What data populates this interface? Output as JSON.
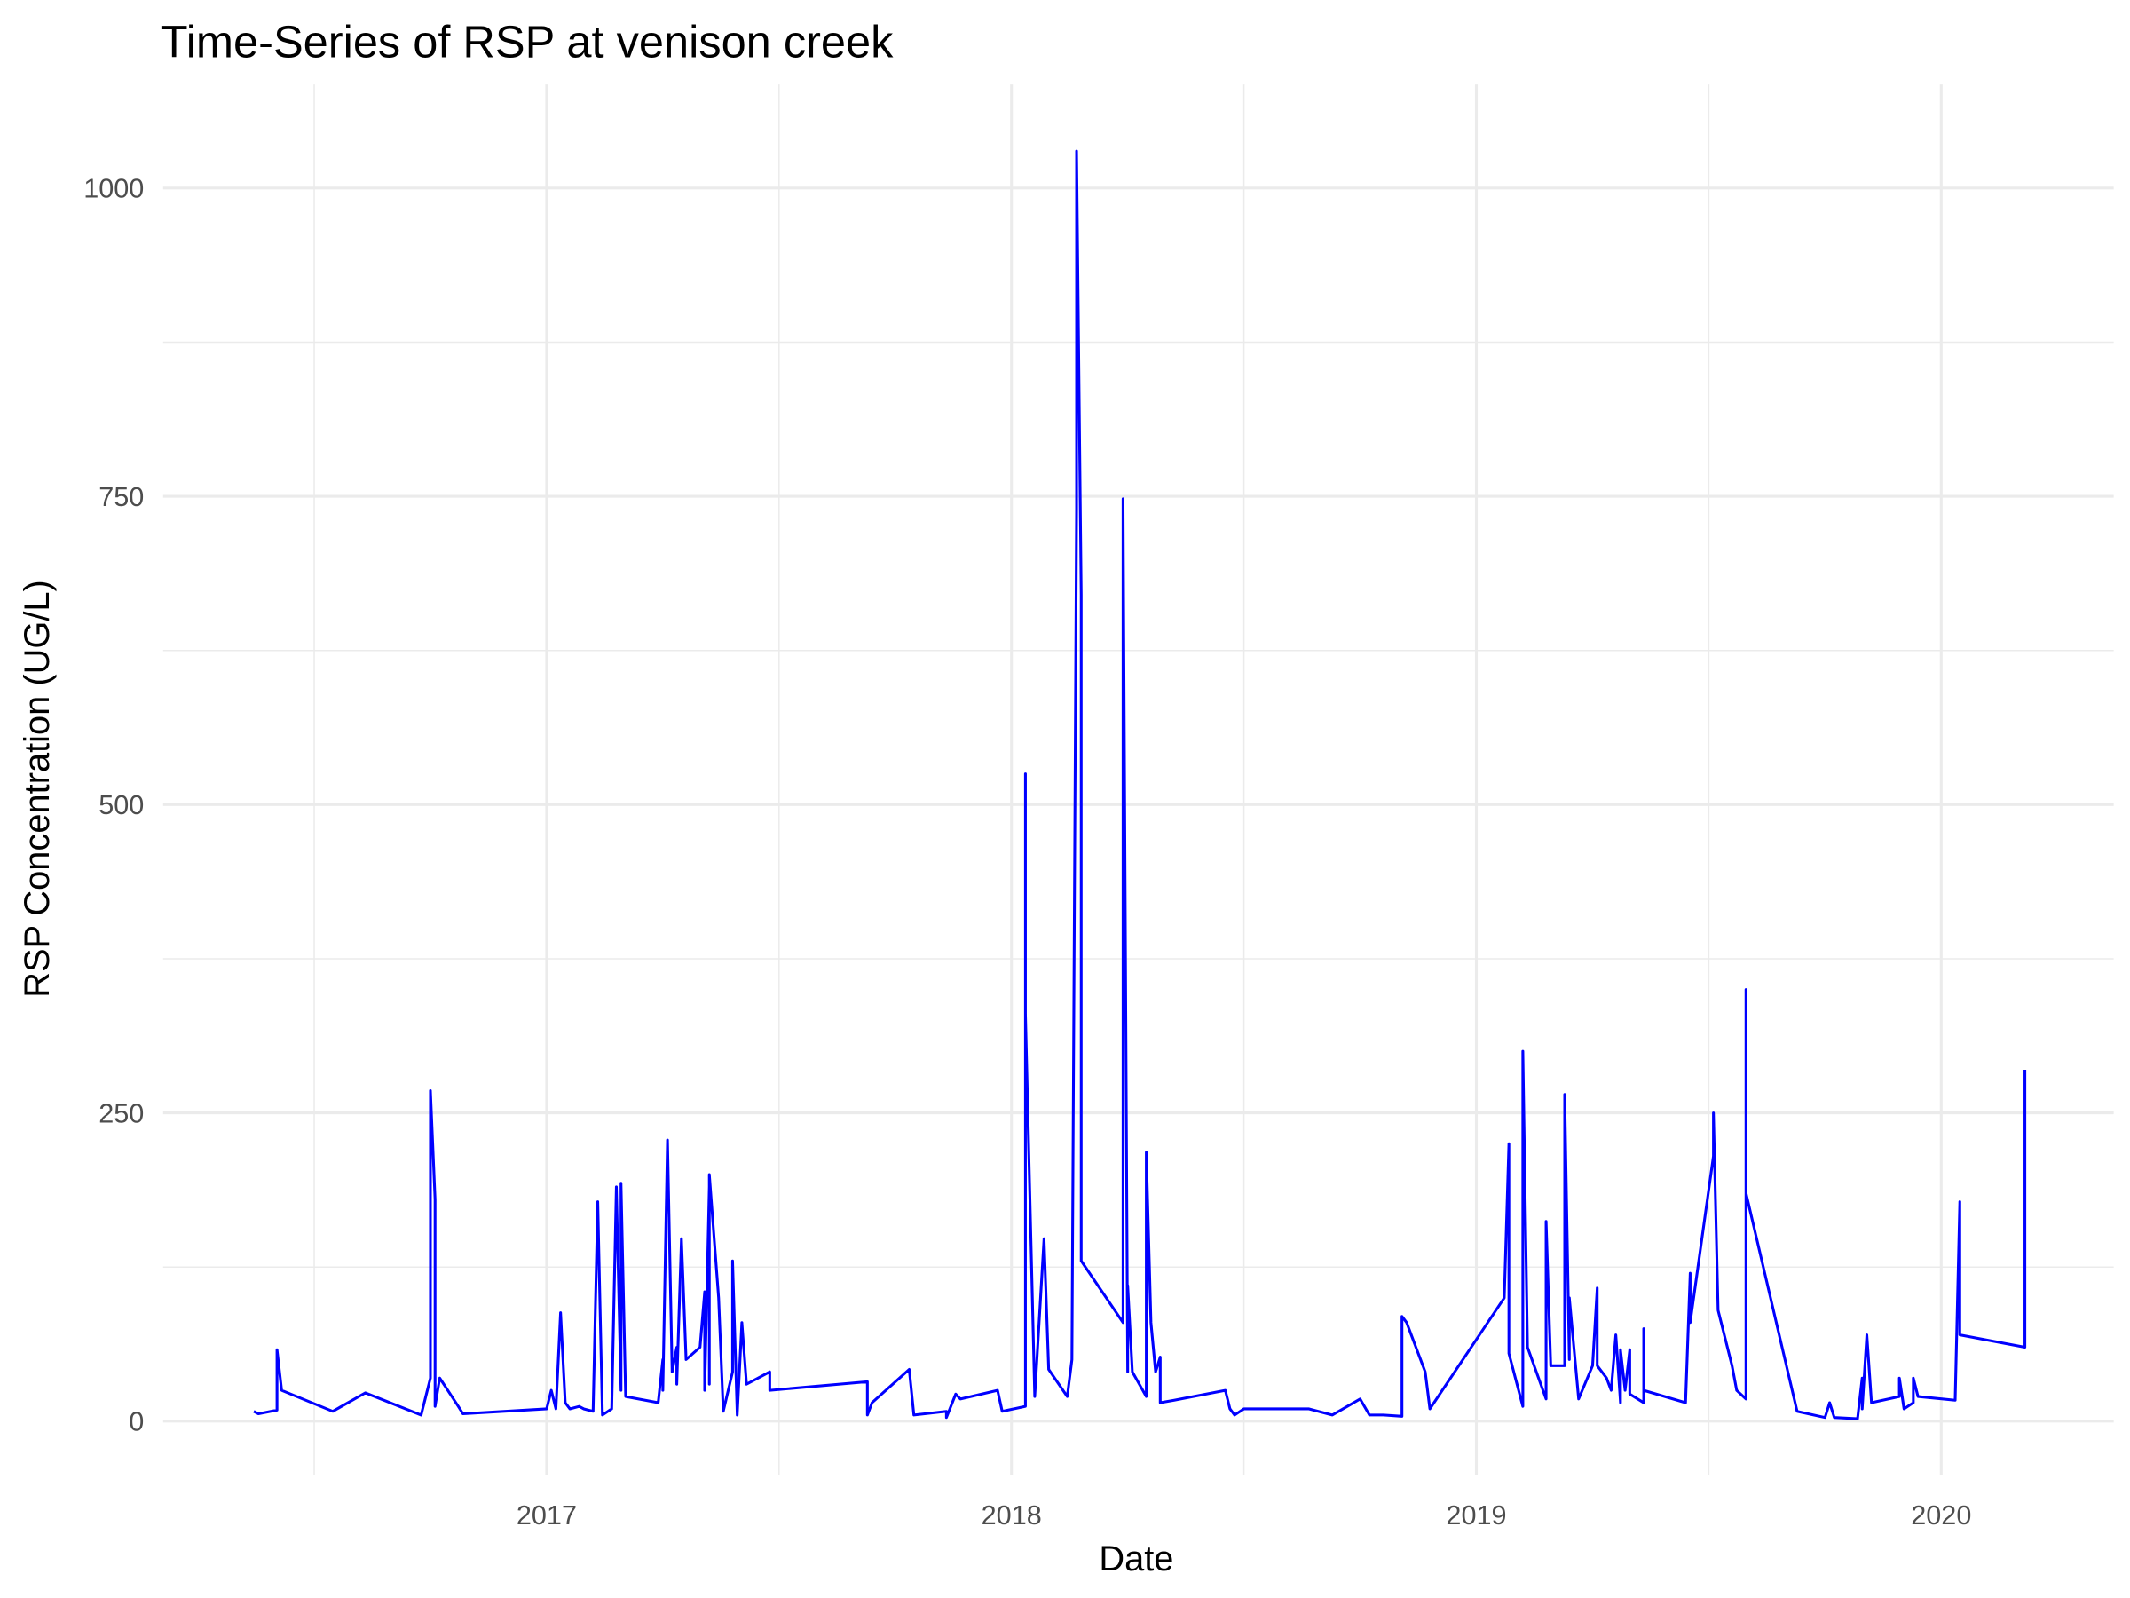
{
  "chart_data": {
    "type": "line",
    "title": "Time-Series of RSP at venison creek",
    "x_label": "Date",
    "y_label": "RSP Concentration (UG/L)",
    "xlim": [
      2016.175,
      2020.371
    ],
    "ylim": [
      -44,
      1084
    ],
    "xticks": [
      2017,
      2018,
      2019,
      2020
    ],
    "yticks": [
      0,
      250,
      500,
      750,
      1000
    ],
    "x_minor_ticks": [
      2016.5,
      2017.5,
      2018.5,
      2019.5
    ],
    "y_minor_ticks": [
      125,
      375,
      625,
      875
    ],
    "grid": true,
    "x": [
      2016.37,
      2016.38,
      2016.42,
      2016.42,
      2016.43,
      2016.54,
      2016.61,
      2016.73,
      2016.75,
      2016.75,
      2016.76,
      2016.76,
      2016.77,
      2016.81,
      2016.82,
      2017.0,
      2017.01,
      2017.02,
      2017.03,
      2017.04,
      2017.05,
      2017.07,
      2017.08,
      2017.1,
      2017.11,
      2017.12,
      2017.14,
      2017.15,
      2017.16,
      2017.16,
      2017.17,
      2017.24,
      2017.25,
      2017.25,
      2017.26,
      2017.27,
      2017.28,
      2017.28,
      2017.29,
      2017.3,
      2017.33,
      2017.34,
      2017.34,
      2017.35,
      2017.35,
      2017.35,
      2017.37,
      2017.38,
      2017.4,
      2017.4,
      2017.41,
      2017.42,
      2017.43,
      2017.48,
      2017.48,
      2017.69,
      2017.69,
      2017.7,
      2017.78,
      2017.79,
      2017.86,
      2017.86,
      2017.88,
      2017.89,
      2017.97,
      2017.98,
      2018.03,
      2018.03,
      2018.03,
      2018.05,
      2018.07,
      2018.08,
      2018.12,
      2018.13,
      2018.14,
      2018.14,
      2018.15,
      2018.15,
      2018.24,
      2018.24,
      2018.25,
      2018.25,
      2018.26,
      2018.29,
      2018.29,
      2018.3,
      2018.31,
      2018.32,
      2018.32,
      2018.35,
      2018.46,
      2018.47,
      2018.48,
      2018.5,
      2018.64,
      2018.69,
      2018.75,
      2018.77,
      2018.8,
      2018.84,
      2018.84,
      2018.85,
      2018.89,
      2018.9,
      2019.06,
      2019.07,
      2019.07,
      2019.1,
      2019.1,
      2019.11,
      2019.15,
      2019.15,
      2019.16,
      2019.19,
      2019.19,
      2019.2,
      2019.2,
      2019.22,
      2019.25,
      2019.26,
      2019.26,
      2019.28,
      2019.29,
      2019.3,
      2019.31,
      2019.31,
      2019.32,
      2019.33,
      2019.33,
      2019.36,
      2019.36,
      2019.36,
      2019.45,
      2019.46,
      2019.46,
      2019.51,
      2019.51,
      2019.52,
      2019.55,
      2019.56,
      2019.58,
      2019.58,
      2019.58,
      2019.69,
      2019.75,
      2019.76,
      2019.77,
      2019.82,
      2019.83,
      2019.83,
      2019.84,
      2019.85,
      2019.91,
      2019.91,
      2019.92,
      2019.94,
      2019.94,
      2019.95,
      2020.03,
      2020.04,
      2020.04,
      2020.18,
      2020.18
    ],
    "series": [
      {
        "color": "#0000ff",
        "values": [
          8,
          6,
          9,
          58,
          25,
          8,
          23,
          5,
          35,
          268,
          180,
          12,
          35,
          12,
          6,
          10,
          25,
          10,
          88,
          15,
          10,
          12,
          10,
          8,
          178,
          5,
          10,
          190,
          25,
          193,
          20,
          15,
          50,
          25,
          228,
          40,
          60,
          30,
          148,
          50,
          60,
          105,
          25,
          190,
          30,
          200,
          100,
          8,
          40,
          130,
          5,
          80,
          30,
          40,
          25,
          32,
          5,
          15,
          42,
          5,
          8,
          3,
          22,
          18,
          25,
          8,
          12,
          525,
          330,
          20,
          148,
          42,
          20,
          50,
          740,
          1030,
          670,
          130,
          80,
          748,
          40,
          110,
          40,
          20,
          218,
          80,
          40,
          52,
          15,
          17,
          25,
          10,
          5,
          10,
          10,
          5,
          18,
          5,
          5,
          4,
          85,
          80,
          40,
          10,
          100,
          225,
          55,
          12,
          300,
          60,
          18,
          162,
          45,
          45,
          265,
          50,
          100,
          18,
          45,
          108,
          45,
          35,
          25,
          70,
          15,
          58,
          25,
          58,
          22,
          15,
          75,
          25,
          15,
          120,
          80,
          215,
          250,
          90,
          45,
          25,
          18,
          350,
          185,
          8,
          3,
          15,
          3,
          2,
          35,
          10,
          70,
          15,
          20,
          35,
          10,
          15,
          35,
          20,
          17,
          178,
          70,
          60,
          285
        ]
      }
    ]
  }
}
